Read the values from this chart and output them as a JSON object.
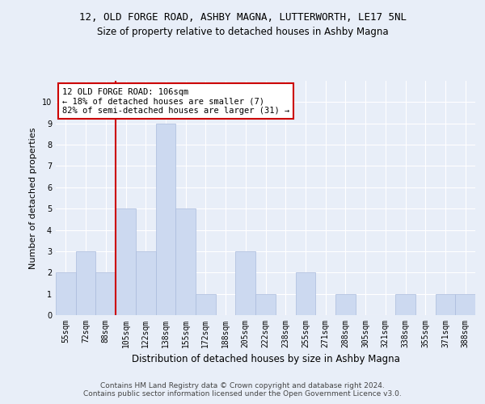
{
  "title1": "12, OLD FORGE ROAD, ASHBY MAGNA, LUTTERWORTH, LE17 5NL",
  "title2": "Size of property relative to detached houses in Ashby Magna",
  "xlabel": "Distribution of detached houses by size in Ashby Magna",
  "ylabel": "Number of detached properties",
  "bins": [
    "55sqm",
    "72sqm",
    "88sqm",
    "105sqm",
    "122sqm",
    "138sqm",
    "155sqm",
    "172sqm",
    "188sqm",
    "205sqm",
    "222sqm",
    "238sqm",
    "255sqm",
    "271sqm",
    "288sqm",
    "305sqm",
    "321sqm",
    "338sqm",
    "355sqm",
    "371sqm",
    "388sqm"
  ],
  "values": [
    2,
    3,
    2,
    5,
    3,
    9,
    5,
    1,
    0,
    3,
    1,
    0,
    2,
    0,
    1,
    0,
    0,
    1,
    0,
    1,
    1
  ],
  "bar_color": "#ccd9f0",
  "bar_edge_color": "#aabbdd",
  "vline_index": 3,
  "vline_color": "#cc0000",
  "annotation_box_text": "12 OLD FORGE ROAD: 106sqm\n← 18% of detached houses are smaller (7)\n82% of semi-detached houses are larger (31) →",
  "annotation_box_color": "#cc0000",
  "ylim": [
    0,
    11
  ],
  "yticks": [
    0,
    1,
    2,
    3,
    4,
    5,
    6,
    7,
    8,
    9,
    10,
    11
  ],
  "footer": "Contains HM Land Registry data © Crown copyright and database right 2024.\nContains public sector information licensed under the Open Government Licence v3.0.",
  "bg_color": "#e8eef8",
  "plot_bg_color": "#e8eef8",
  "grid_color": "#ffffff"
}
